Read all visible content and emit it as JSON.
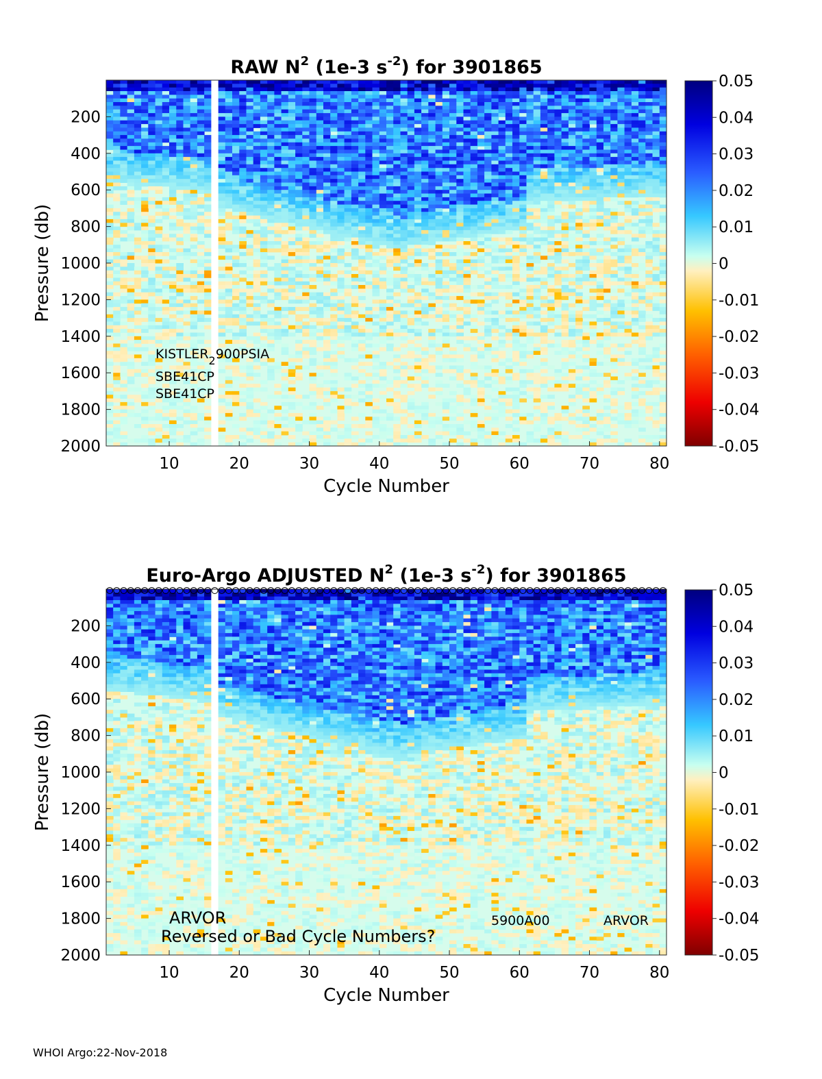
{
  "chart_data": [
    {
      "type": "heatmap",
      "title_prefix": "RAW N",
      "title_sup1": "2",
      "title_mid": " (1e-3 s",
      "title_sup2": "-2",
      "title_suffix": ") for 3901865",
      "xlabel": "Cycle Number",
      "ylabel": "Pressure (db)",
      "xlim": [
        1,
        81
      ],
      "ylim": [
        0,
        2000
      ],
      "xticks": [
        "10",
        "20",
        "30",
        "40",
        "50",
        "60",
        "70",
        "80"
      ],
      "xtick_values": [
        10,
        20,
        30,
        40,
        50,
        60,
        70,
        80
      ],
      "yticks": [
        "200",
        "400",
        "600",
        "800",
        "1000",
        "1200",
        "1400",
        "1600",
        "1800",
        "2000"
      ],
      "ytick_values": [
        200,
        400,
        600,
        800,
        1000,
        1200,
        1400,
        1600,
        1800,
        2000
      ],
      "colorbar": {
        "range": [
          -0.05,
          0.05
        ],
        "ticks": [
          "0.05",
          "0.04",
          "0.03",
          "0.02",
          "0.01",
          "0",
          "-0.01",
          "-0.02",
          "-0.03",
          "-0.04",
          "-0.05"
        ],
        "tick_values": [
          0.05,
          0.04,
          0.03,
          0.02,
          0.01,
          0,
          -0.01,
          -0.02,
          -0.03,
          -0.04,
          -0.05
        ]
      },
      "annotations": {
        "sensor_label_a": "KISTLER",
        "sensor_label_sub": "2",
        "sensor_label_b": "900PSIA",
        "ctd_label_1": "SBE41CP",
        "ctd_label_2": "SBE41CP"
      },
      "missing_cycles": [
        17
      ],
      "surface_markers": false
    },
    {
      "type": "heatmap",
      "title_prefix": "Euro-Argo  ADJUSTED N",
      "title_sup1": "2",
      "title_mid": " (1e-3 s",
      "title_sup2": "-2",
      "title_suffix": ") for 3901865",
      "xlabel": "Cycle Number",
      "ylabel": "Pressure (db)",
      "xlim": [
        1,
        81
      ],
      "ylim": [
        0,
        2000
      ],
      "xticks": [
        "10",
        "20",
        "30",
        "40",
        "50",
        "60",
        "70",
        "80"
      ],
      "xtick_values": [
        10,
        20,
        30,
        40,
        50,
        60,
        70,
        80
      ],
      "yticks": [
        "200",
        "400",
        "600",
        "800",
        "1000",
        "1200",
        "1400",
        "1600",
        "1800",
        "2000"
      ],
      "ytick_values": [
        200,
        400,
        600,
        800,
        1000,
        1200,
        1400,
        1600,
        1800,
        2000
      ],
      "colorbar": {
        "range": [
          -0.05,
          0.05
        ],
        "ticks": [
          "0.05",
          "0.04",
          "0.03",
          "0.02",
          "0.01",
          "0",
          "-0.01",
          "-0.02",
          "-0.03",
          "-0.04",
          "-0.05"
        ],
        "tick_values": [
          0.05,
          0.04,
          0.03,
          0.02,
          0.01,
          0,
          -0.01,
          -0.02,
          -0.03,
          -0.04,
          -0.05
        ]
      },
      "annotations": {
        "platform_left": "ARVOR",
        "warning": "Reversed or Bad Cycle Numbers?",
        "dac_code": "5900A00",
        "platform_right": "ARVOR"
      },
      "missing_cycles": [
        17
      ],
      "surface_markers": true
    }
  ],
  "footer": "WHOI Argo:22-Nov-2018"
}
